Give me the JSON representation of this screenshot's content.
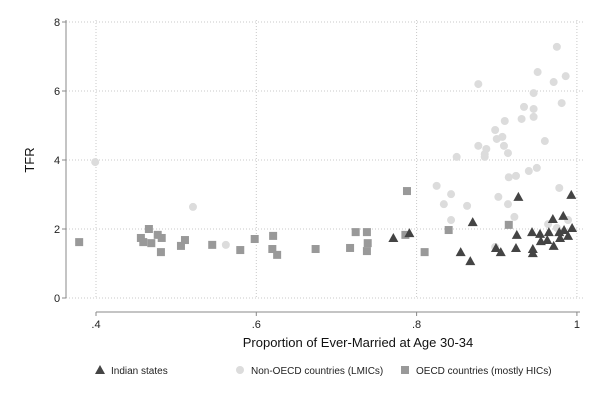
{
  "chart_data": {
    "type": "scatter",
    "title": "",
    "xlabel": "Proportion of Ever-Married at Age 30-34",
    "ylabel": "TFR",
    "xlim": [
      0.375,
      1.0
    ],
    "ylim": [
      0,
      8
    ],
    "xticks": [
      {
        "v": 0.4,
        "label": ".4"
      },
      {
        "v": 0.6,
        "label": ".6"
      },
      {
        "v": 0.8,
        "label": ".8"
      },
      {
        "v": 1.0,
        "label": "1"
      }
    ],
    "yticks": [
      {
        "v": 0,
        "label": "0"
      },
      {
        "v": 2,
        "label": "2"
      },
      {
        "v": 4,
        "label": "4"
      },
      {
        "v": 6,
        "label": "6"
      },
      {
        "v": 8,
        "label": "8"
      }
    ],
    "grid": true,
    "legend_position": "bottom",
    "series": [
      {
        "name": "Indian states",
        "marker": "triangle",
        "color": "#444444",
        "points": [
          [
            0.771,
            1.74
          ],
          [
            0.791,
            1.88
          ],
          [
            0.855,
            1.33
          ],
          [
            0.867,
            1.07
          ],
          [
            0.87,
            2.2
          ],
          [
            0.899,
            1.45
          ],
          [
            0.905,
            1.33
          ],
          [
            0.925,
            1.83
          ],
          [
            0.927,
            2.93
          ],
          [
            0.924,
            1.45
          ],
          [
            0.944,
            1.91
          ],
          [
            0.945,
            1.42
          ],
          [
            0.945,
            1.3
          ],
          [
            0.954,
            1.86
          ],
          [
            0.955,
            1.65
          ],
          [
            0.965,
            1.91
          ],
          [
            0.963,
            1.68
          ],
          [
            0.97,
            2.29
          ],
          [
            0.971,
            1.51
          ],
          [
            0.978,
            1.91
          ],
          [
            0.979,
            1.74
          ],
          [
            0.983,
            2.38
          ],
          [
            0.984,
            1.97
          ],
          [
            0.989,
            1.8
          ],
          [
            0.993,
            2.99
          ],
          [
            0.994,
            2.03
          ]
        ]
      },
      {
        "name": "Non-OECD countries (LMICs)",
        "marker": "circle",
        "color": "#dcdcdc",
        "points": [
          [
            0.975,
            7.28
          ],
          [
            0.951,
            6.55
          ],
          [
            0.986,
            6.43
          ],
          [
            0.971,
            6.26
          ],
          [
            0.877,
            6.2
          ],
          [
            0.946,
            5.94
          ],
          [
            0.981,
            5.65
          ],
          [
            0.934,
            5.54
          ],
          [
            0.946,
            5.48
          ],
          [
            0.91,
            5.13
          ],
          [
            0.931,
            5.19
          ],
          [
            0.946,
            5.25
          ],
          [
            0.898,
            4.87
          ],
          [
            0.9,
            4.61
          ],
          [
            0.907,
            4.67
          ],
          [
            0.96,
            4.55
          ],
          [
            0.877,
            4.41
          ],
          [
            0.887,
            4.32
          ],
          [
            0.909,
            4.41
          ],
          [
            0.914,
            4.2
          ],
          [
            0.85,
            4.09
          ],
          [
            0.885,
            4.17
          ],
          [
            0.885,
            4.09
          ],
          [
            0.95,
            3.77
          ],
          [
            0.94,
            3.68
          ],
          [
            0.924,
            3.54
          ],
          [
            0.915,
            3.5
          ],
          [
            0.825,
            3.25
          ],
          [
            0.843,
            3.01
          ],
          [
            0.834,
            2.72
          ],
          [
            0.863,
            2.67
          ],
          [
            0.843,
            2.26
          ],
          [
            0.902,
            2.93
          ],
          [
            0.914,
            2.72
          ],
          [
            0.922,
            2.35
          ],
          [
            0.978,
            3.19
          ],
          [
            0.964,
            2.14
          ],
          [
            0.975,
            2.03
          ],
          [
            0.989,
            2.26
          ],
          [
            0.898,
            1.48
          ],
          [
            0.399,
            3.94
          ],
          [
            0.521,
            2.64
          ],
          [
            0.562,
            1.54
          ]
        ]
      },
      {
        "name": "OECD countries (mostly HICs)",
        "marker": "square",
        "color": "#999999",
        "points": [
          [
            0.379,
            1.62
          ],
          [
            0.466,
            2.0
          ],
          [
            0.456,
            1.74
          ],
          [
            0.459,
            1.62
          ],
          [
            0.469,
            1.59
          ],
          [
            0.477,
            1.83
          ],
          [
            0.482,
            1.74
          ],
          [
            0.481,
            1.33
          ],
          [
            0.506,
            1.51
          ],
          [
            0.511,
            1.68
          ],
          [
            0.545,
            1.54
          ],
          [
            0.58,
            1.39
          ],
          [
            0.598,
            1.71
          ],
          [
            0.621,
            1.8
          ],
          [
            0.62,
            1.42
          ],
          [
            0.626,
            1.25
          ],
          [
            0.674,
            1.42
          ],
          [
            0.717,
            1.45
          ],
          [
            0.724,
            1.91
          ],
          [
            0.738,
            1.91
          ],
          [
            0.739,
            1.59
          ],
          [
            0.738,
            1.36
          ],
          [
            0.788,
            3.1
          ],
          [
            0.786,
            1.83
          ],
          [
            0.81,
            1.33
          ],
          [
            0.84,
            1.97
          ],
          [
            0.915,
            2.12
          ]
        ]
      }
    ]
  }
}
